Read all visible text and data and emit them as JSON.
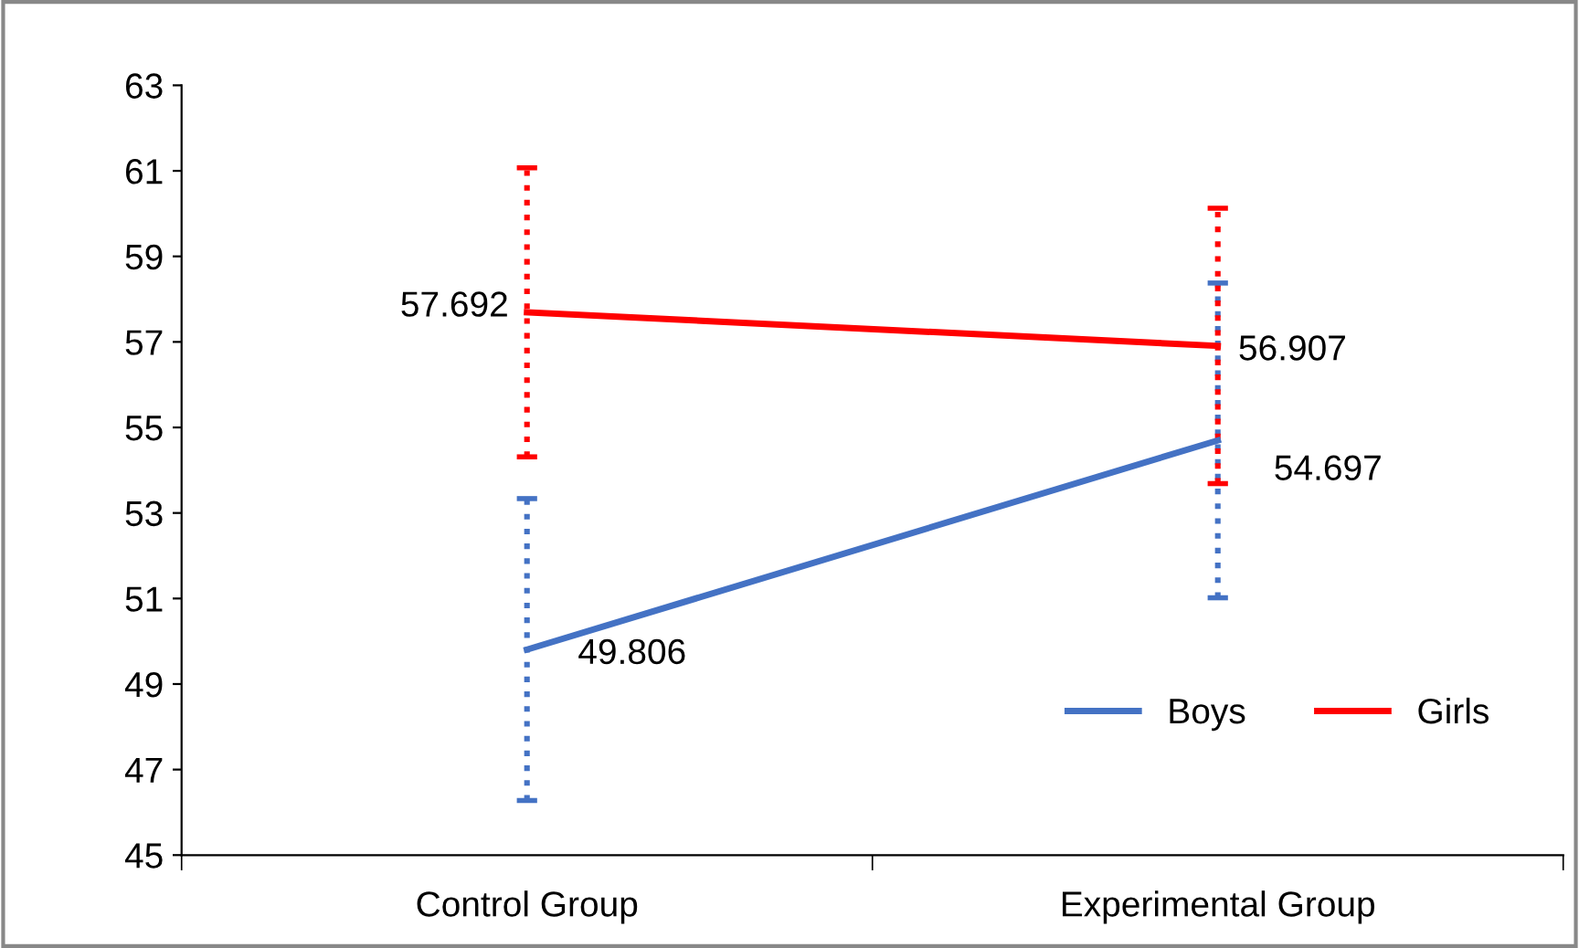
{
  "chart_data": {
    "type": "line",
    "categories": [
      "Control Group",
      "Experimental Group"
    ],
    "series": [
      {
        "name": "Boys",
        "color": "#4472c4",
        "values": [
          49.806,
          54.697
        ],
        "errors": [
          3.53,
          3.68
        ]
      },
      {
        "name": "Girls",
        "color": "#ff0000",
        "values": [
          57.692,
          56.907
        ],
        "errors": [
          3.38,
          3.22
        ]
      }
    ],
    "ylim": [
      45,
      63
    ],
    "yticks": [
      45,
      47,
      49,
      51,
      53,
      55,
      57,
      59,
      61,
      63
    ],
    "grid": false,
    "legend": "bottom right",
    "data_labels": true,
    "marker": "none",
    "line_style": "solid"
  }
}
